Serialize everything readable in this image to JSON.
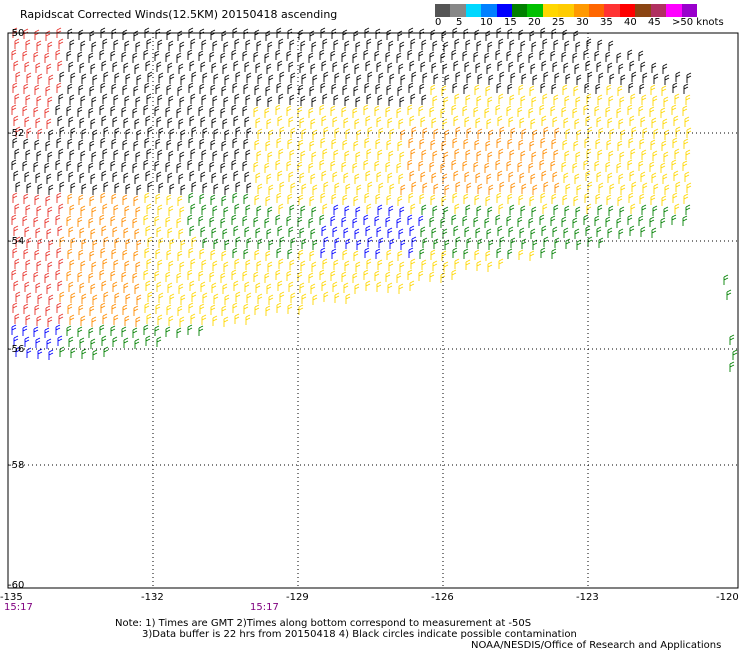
{
  "title": "Rapidscat Corrected Winds(12.5KM) 20150418 ascending",
  "legend": {
    "colors": [
      "#555555",
      "#888888",
      "#00d8ff",
      "#0080ff",
      "#0000ff",
      "#008000",
      "#00c000",
      "#ffd700",
      "#ffcc00",
      "#ff9900",
      "#ff6600",
      "#ff3333",
      "#ff0000",
      "#8b4513",
      "#b03060",
      "#ff00ff",
      "#9900cc"
    ],
    "labels": [
      "0",
      "5",
      "10",
      "15",
      "20",
      "25",
      "30",
      "35",
      "40",
      "45",
      ">50 knots"
    ]
  },
  "y_axis": {
    "labels": [
      "-50",
      "-52",
      "-54",
      "-56",
      "-58",
      "-60"
    ]
  },
  "x_axis": {
    "labels": [
      "-135",
      "-132",
      "-129",
      "-126",
      "-123",
      "-120"
    ]
  },
  "times": [
    "15:17",
    "15:17"
  ],
  "notes": [
    "Note: 1) Times are GMT 2)Times along bottom correspond to measurement at -50S",
    "3)Data buffer is 22 hrs from 20150418 4) Black circles indicate possible contamination",
    "NOAA/NESDIS/Office of Research and Applications"
  ],
  "colors": {
    "black_barbs": "#000000",
    "yellow": "#ffd700",
    "orange": "#ff8c00",
    "red": "#e8332b",
    "green": "#008000",
    "blue": "#0000ff",
    "magenta": "#cc0080",
    "grid": "#000000"
  }
}
